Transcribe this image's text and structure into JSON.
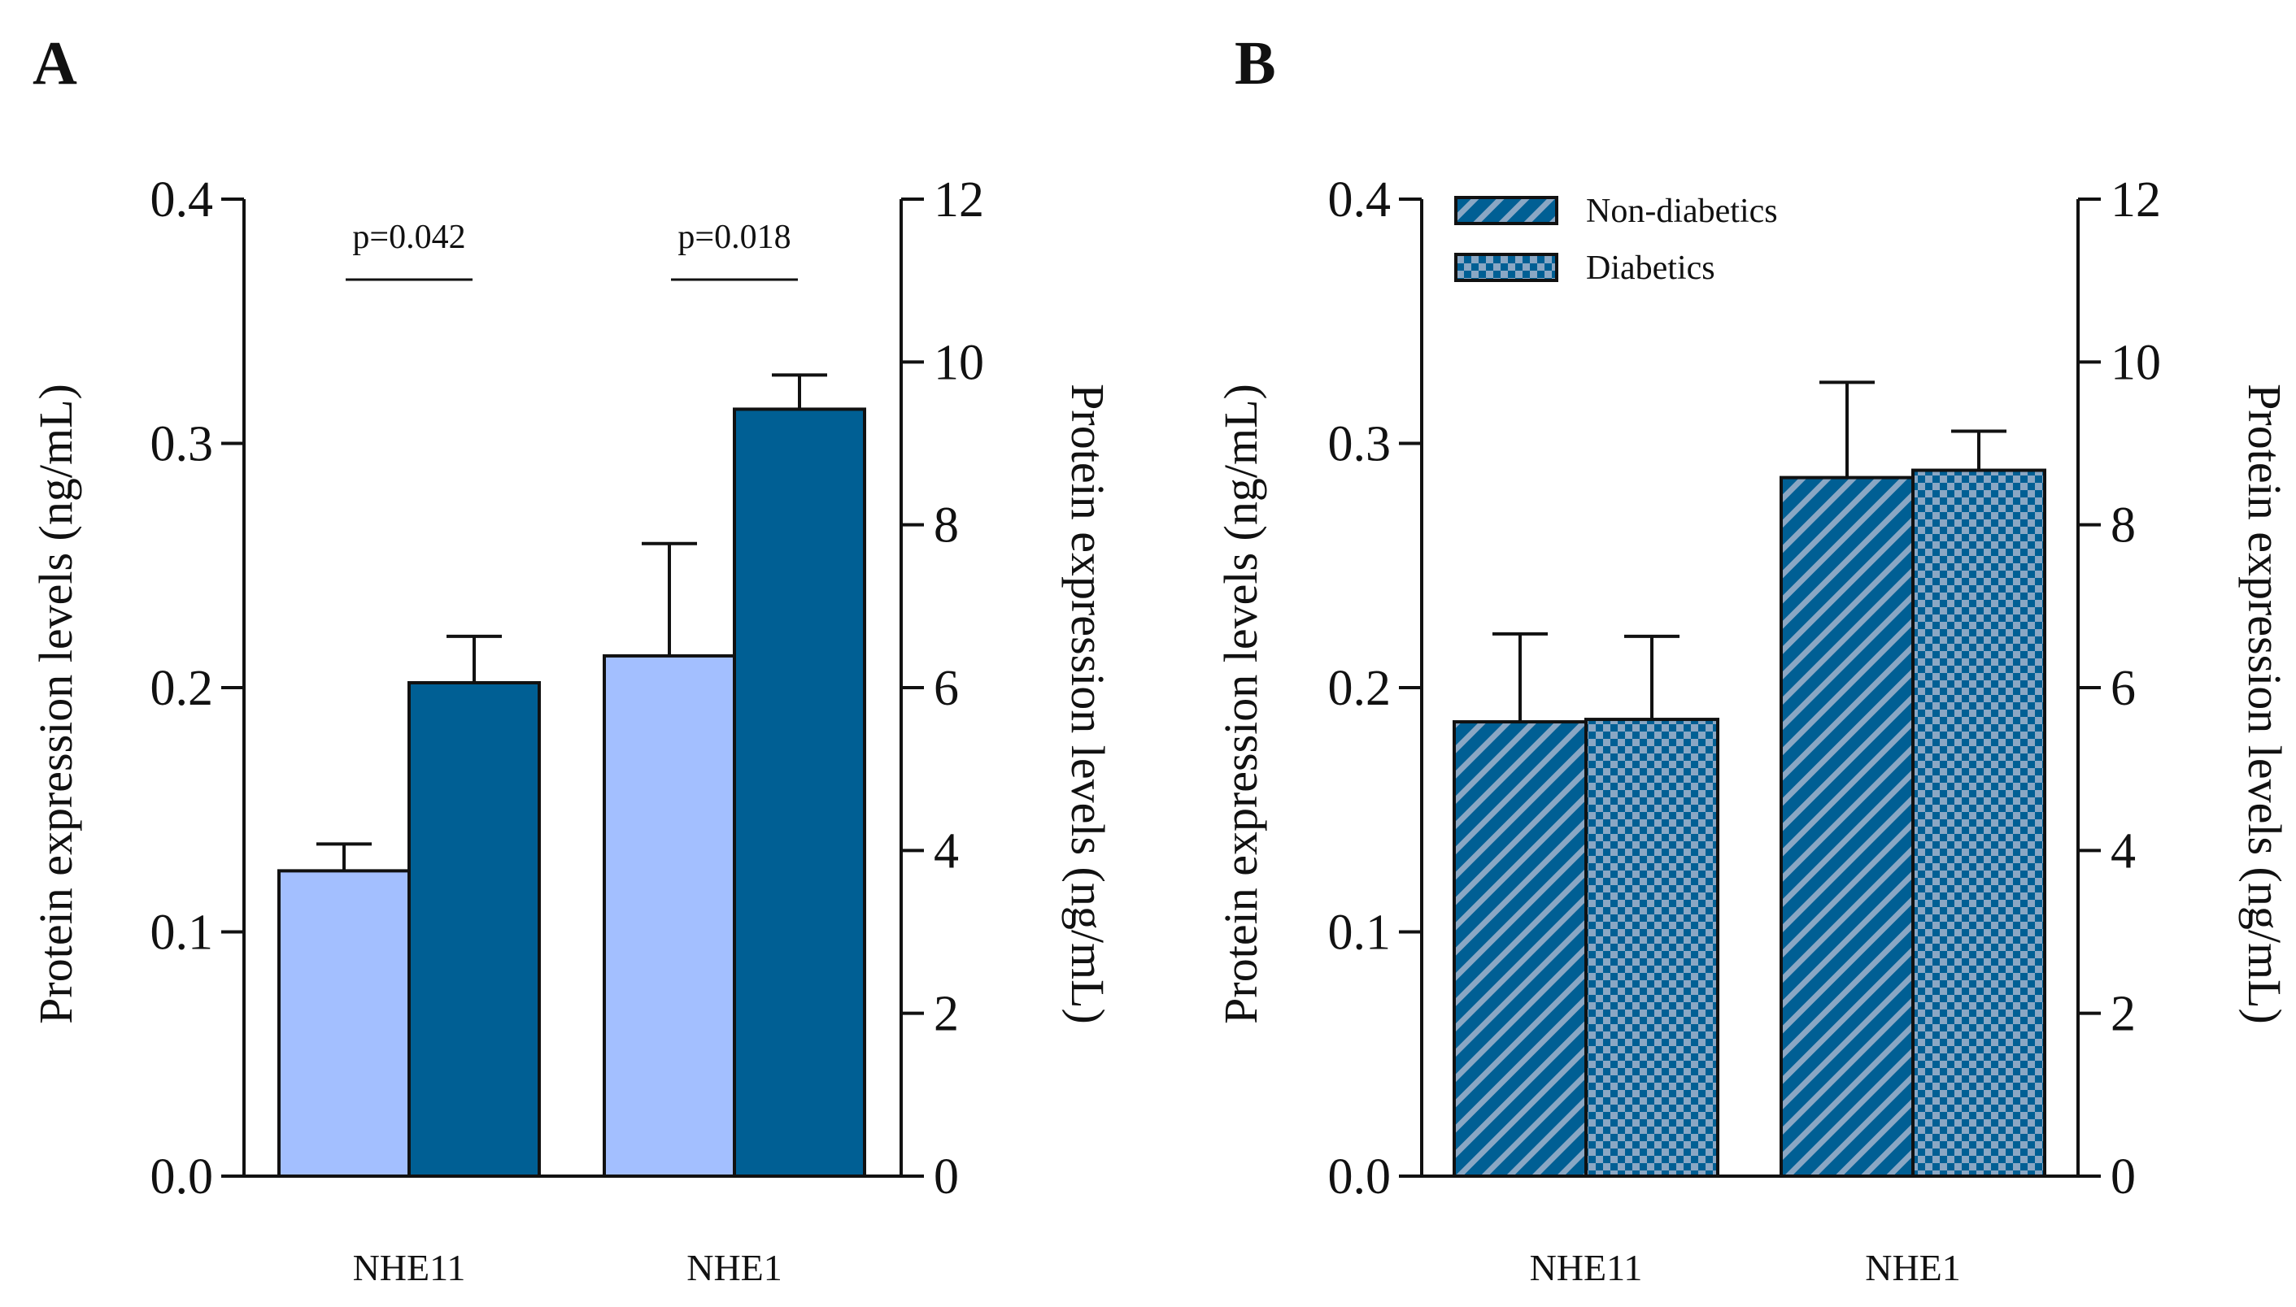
{
  "chart_data": [
    {
      "panel": "A",
      "type": "bar",
      "categories": [
        "NHE11",
        "NHE1"
      ],
      "series": [
        {
          "name": "",
          "fill": "#a3bfff",
          "pattern": "solid",
          "values": [
            0.125,
            0.213
          ],
          "errors": [
            0.011,
            0.046
          ]
        },
        {
          "name": "",
          "fill": "#005f94",
          "pattern": "solid",
          "values": [
            0.202,
            0.314
          ],
          "errors": [
            0.019,
            0.014
          ]
        }
      ],
      "ylabel": "Protein expression levels (ng/mL)",
      "y2label": "Protein expression levels (ng/mL)",
      "ylim": [
        0,
        0.4
      ],
      "yticks": [
        0.0,
        0.1,
        0.2,
        0.3,
        0.4
      ],
      "ytick_labels": [
        "0.0",
        "0.1",
        "0.2",
        "0.3",
        "0.4"
      ],
      "y2lim": [
        0,
        12
      ],
      "y2ticks": [
        0,
        2,
        4,
        6,
        8,
        10,
        12
      ],
      "y2tick_labels": [
        "0",
        "2",
        "4",
        "6",
        "8",
        "10",
        "12"
      ],
      "annotations": [
        {
          "category": "NHE11",
          "text": "p=0.042"
        },
        {
          "category": "NHE1",
          "text": "p=0.018"
        }
      ],
      "legend": []
    },
    {
      "panel": "B",
      "type": "bar",
      "categories": [
        "NHE11",
        "NHE1"
      ],
      "series": [
        {
          "name": "Non-diabetics",
          "fill": "#005f94",
          "pattern": "hatch",
          "values": [
            0.186,
            0.286
          ],
          "errors": [
            0.036,
            0.039
          ]
        },
        {
          "name": "Diabetics",
          "fill": "#005f94",
          "pattern": "checker",
          "values": [
            0.187,
            0.289
          ],
          "errors": [
            0.034,
            0.016
          ]
        }
      ],
      "ylabel": "Protein expression levels (ng/mL)",
      "y2label": "Protein expression levels (ng/mL)",
      "ylim": [
        0,
        0.4
      ],
      "yticks": [
        0.0,
        0.1,
        0.2,
        0.3,
        0.4
      ],
      "ytick_labels": [
        "0.0",
        "0.1",
        "0.2",
        "0.3",
        "0.4"
      ],
      "y2lim": [
        0,
        12
      ],
      "y2ticks": [
        0,
        2,
        4,
        6,
        8,
        10,
        12
      ],
      "y2tick_labels": [
        "0",
        "2",
        "4",
        "6",
        "8",
        "10",
        "12"
      ],
      "annotations": [],
      "legend": [
        {
          "name": "Non-diabetics",
          "pattern": "hatch"
        },
        {
          "name": "Diabetics",
          "pattern": "checker"
        }
      ]
    }
  ],
  "colors": {
    "axis": "#111111",
    "light_blue": "#a3bfff",
    "dark_blue": "#005f94",
    "pattern_light": "#8aa7c4"
  }
}
